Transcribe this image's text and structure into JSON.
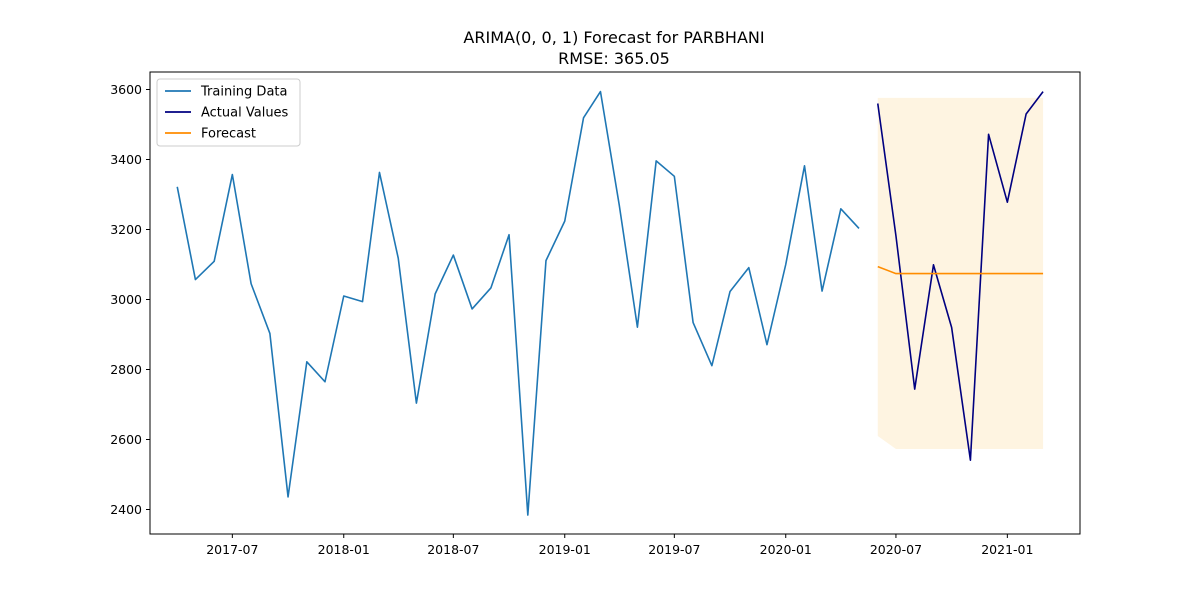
{
  "chart_data": {
    "type": "line",
    "title": "ARIMA(0, 0, 1) Forecast for PARBHANI",
    "subtitle": "RMSE: 365.05",
    "xlabel": "",
    "ylabel": "",
    "xlim": [
      "2017-02-15",
      "2021-05-01"
    ],
    "ylim": [
      2330,
      3650
    ],
    "x_ticks": [
      "2017-07",
      "2018-01",
      "2018-07",
      "2019-01",
      "2019-07",
      "2020-01",
      "2020-07",
      "2021-01"
    ],
    "y_ticks": [
      2400,
      2600,
      2800,
      3000,
      3200,
      3400,
      3600
    ],
    "grid": false,
    "legend": {
      "position": "top-left"
    },
    "series": [
      {
        "name": "Training Data",
        "color": "#1f77b4",
        "x": [
          "2017-04",
          "2017-05",
          "2017-06",
          "2017-07",
          "2017-08",
          "2017-09",
          "2017-10",
          "2017-11",
          "2017-12",
          "2018-01",
          "2018-02",
          "2018-03",
          "2018-04",
          "2018-05",
          "2018-06",
          "2018-07",
          "2018-08",
          "2018-09",
          "2018-10",
          "2018-11",
          "2018-12",
          "2019-01",
          "2019-02",
          "2019-03",
          "2019-04",
          "2019-05",
          "2019-06",
          "2019-07",
          "2019-08",
          "2019-09",
          "2019-10",
          "2019-11",
          "2019-12",
          "2020-01",
          "2020-02",
          "2020-03",
          "2020-04",
          "2020-05"
        ],
        "values": [
          3322,
          3057,
          3109,
          3357,
          3045,
          2903,
          2436,
          2822,
          2765,
          3010,
          2994,
          3363,
          3118,
          2704,
          3016,
          3127,
          2973,
          3033,
          3185,
          2384,
          3111,
          3224,
          3519,
          3594,
          3270,
          2921,
          3396,
          3352,
          2934,
          2811,
          3023,
          3091,
          2871,
          3100,
          3382,
          3024,
          3259,
          3203
        ]
      },
      {
        "name": "Actual Values",
        "color": "#000080",
        "x": [
          "2020-06",
          "2020-07",
          "2020-08",
          "2020-09",
          "2020-10",
          "2020-11",
          "2020-12",
          "2021-01",
          "2021-02",
          "2021-03"
        ],
        "values": [
          3560,
          3182,
          2744,
          3099,
          2920,
          2541,
          3472,
          3278,
          3530,
          3594
        ]
      },
      {
        "name": "Forecast",
        "color": "#ff8c00",
        "x": [
          "2020-06",
          "2020-07",
          "2020-08",
          "2020-09",
          "2020-10",
          "2020-11",
          "2020-12",
          "2021-01",
          "2021-02",
          "2021-03"
        ],
        "values": [
          3094,
          3074,
          3074,
          3074,
          3074,
          3074,
          3074,
          3074,
          3074,
          3074
        ]
      }
    ],
    "confidence_band": {
      "color": "#fdebc8",
      "x": [
        "2020-06",
        "2020-07",
        "2020-08",
        "2020-09",
        "2020-10",
        "2020-11",
        "2020-12",
        "2021-01",
        "2021-02",
        "2021-03"
      ],
      "lower": [
        2610,
        2573,
        2573,
        2573,
        2573,
        2573,
        2573,
        2573,
        2573,
        2573
      ],
      "upper": [
        3576,
        3576,
        3576,
        3576,
        3576,
        3576,
        3576,
        3576,
        3576,
        3576
      ]
    }
  }
}
